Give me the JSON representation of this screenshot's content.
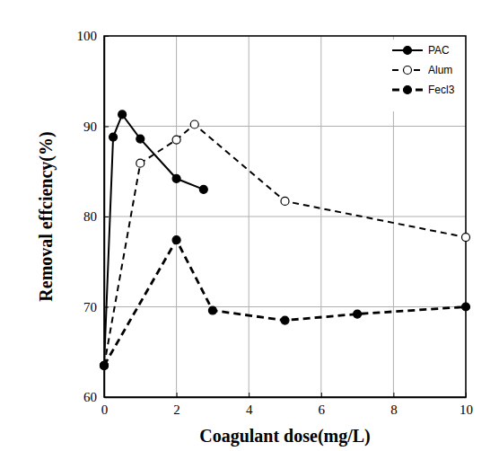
{
  "chart_data": {
    "type": "line",
    "x_label": "Coagulant dose(mg/L)",
    "y_label": "Removal effciency(%)",
    "xlim": [
      0,
      10
    ],
    "xticks": [
      0,
      2,
      4,
      6,
      8,
      10
    ],
    "ylim": [
      60,
      100
    ],
    "yticks": [
      60,
      70,
      80,
      90,
      100
    ],
    "grid": true,
    "legend": "upper right",
    "series": [
      {
        "name": "PAC",
        "color": "#000000",
        "marker": "circle",
        "line_style": "solid",
        "x": [
          0,
          0.25,
          0.5,
          1,
          2,
          2.75
        ],
        "values": [
          63.5,
          88.8,
          91.3,
          88.6,
          84.2,
          83.0
        ]
      },
      {
        "name": "Alum",
        "color": "#000000",
        "marker": "open_circle",
        "line_style": "dashed",
        "x": [
          0,
          1,
          2,
          2.5,
          5,
          10
        ],
        "values": [
          63.5,
          85.9,
          88.5,
          90.2,
          81.7,
          77.7
        ]
      },
      {
        "name": "Fecl3",
        "color": "#000000",
        "marker": "circle",
        "line_style": "dashed_bold",
        "x": [
          0,
          2,
          3,
          5,
          7,
          10
        ],
        "values": [
          63.5,
          77.4,
          69.6,
          68.5,
          69.2,
          70.0
        ]
      }
    ]
  }
}
